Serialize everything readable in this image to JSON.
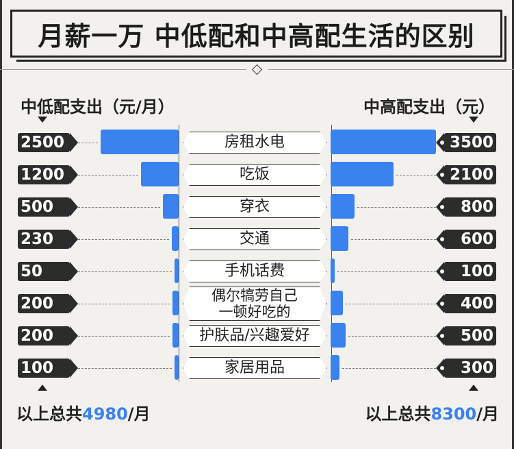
{
  "title": "月薪一万 中低配和中高配生活的区别",
  "left_header": "中低配支出（元/月）",
  "right_header": "中高配支出（元）",
  "left_total": {
    "prefix": "以上总共",
    "value": "4980",
    "suffix": "/月"
  },
  "right_total": {
    "prefix": "以上总共",
    "value": "8300",
    "suffix": "/月"
  },
  "colors": {
    "bar": "#3a82ee",
    "tag": "#2c2c2c"
  },
  "chart_data": {
    "type": "bar",
    "categories": [
      "房租水电",
      "吃饭",
      "穿衣",
      "交通",
      "手机话费",
      "偶尔犒劳自己一顿好吃的",
      "护肤品/兴趣爱好",
      "家居用品"
    ],
    "category_lines": [
      [
        "房租水电"
      ],
      [
        "吃饭"
      ],
      [
        "穿衣"
      ],
      [
        "交通"
      ],
      [
        "手机话费"
      ],
      [
        "偶尔犒劳自己",
        "一顿好吃的"
      ],
      [
        "护肤品/兴趣爱好"
      ],
      [
        "家居用品"
      ]
    ],
    "series": [
      {
        "name": "中低配支出（元/月）",
        "values": [
          2500,
          1200,
          500,
          230,
          50,
          200,
          200,
          100
        ]
      },
      {
        "name": "中高配支出（元）",
        "values": [
          3500,
          2100,
          800,
          600,
          100,
          400,
          500,
          300
        ]
      }
    ]
  }
}
